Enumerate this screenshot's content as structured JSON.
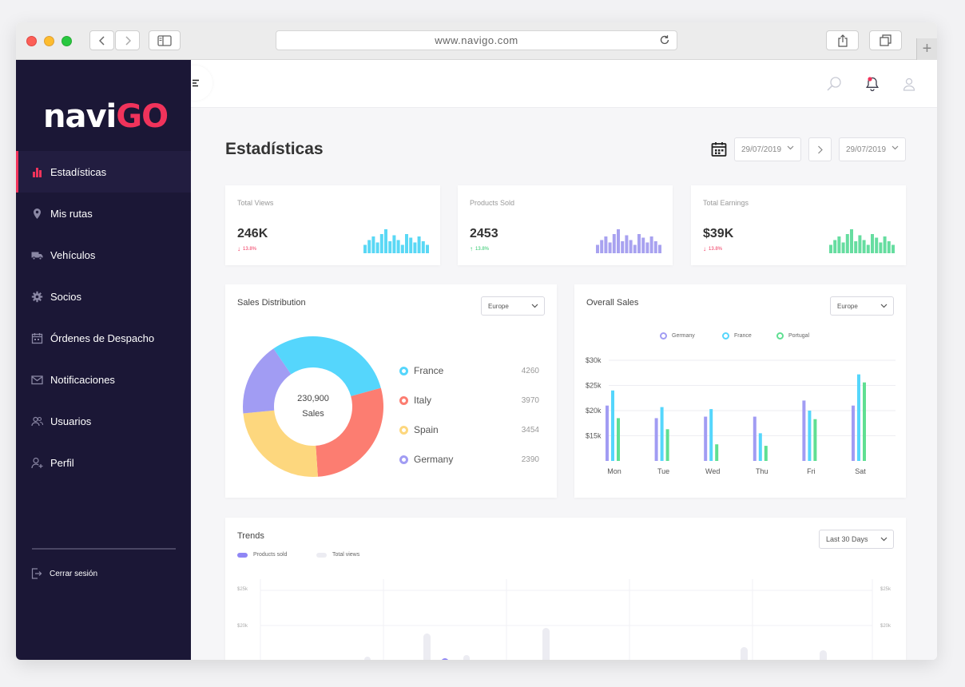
{
  "browser": {
    "url": "www.navigo.com"
  },
  "brand": {
    "name_part1": "navi",
    "name_part2": "GO"
  },
  "sidebar": {
    "items": [
      {
        "label": "Estadísticas",
        "icon": "bar-chart-icon",
        "active": true
      },
      {
        "label": "Mis rutas",
        "icon": "location-pin-icon"
      },
      {
        "label": "Vehículos",
        "icon": "truck-icon"
      },
      {
        "label": "Socios",
        "icon": "gear-icon"
      },
      {
        "label": "Órdenes de Despacho",
        "icon": "calendar-icon"
      },
      {
        "label": "Notificaciones",
        "icon": "envelope-icon"
      },
      {
        "label": "Usuarios",
        "icon": "users-icon"
      },
      {
        "label": "Perfil",
        "icon": "user-add-icon"
      }
    ],
    "logout_label": "Cerrar sesión"
  },
  "header": {
    "title": "Estadísticas",
    "date_from": "29/07/2019",
    "date_to": "29/07/2019"
  },
  "stats": [
    {
      "label": "Total Views",
      "value": "246K",
      "change": "13.8%",
      "direction": "down",
      "color": "#5ad8f5",
      "bars": [
        0.35,
        0.55,
        0.7,
        0.45,
        0.8,
        1.0,
        0.5,
        0.75,
        0.55,
        0.35,
        0.8,
        0.65,
        0.45,
        0.7,
        0.5,
        0.35
      ]
    },
    {
      "label": "Products Sold",
      "value": "2453",
      "change": "13.8%",
      "direction": "up",
      "color": "#a8a2f0",
      "bars": [
        0.35,
        0.55,
        0.7,
        0.45,
        0.8,
        1.0,
        0.5,
        0.75,
        0.55,
        0.35,
        0.8,
        0.65,
        0.45,
        0.7,
        0.5,
        0.35
      ]
    },
    {
      "label": "Total Earnings",
      "value": "$39K",
      "change": "13.8%",
      "direction": "down",
      "color": "#66dda0",
      "bars": [
        0.35,
        0.55,
        0.7,
        0.45,
        0.8,
        1.0,
        0.5,
        0.75,
        0.55,
        0.35,
        0.8,
        0.65,
        0.45,
        0.7,
        0.5,
        0.35
      ]
    }
  ],
  "sales_distribution": {
    "title": "Sales Distribution",
    "region": "Europe",
    "total": "230,900",
    "total_label": "Sales",
    "items": [
      {
        "name": "France",
        "value": 4260,
        "color": "#55d6fc"
      },
      {
        "name": "Italy",
        "value": 3970,
        "color": "#fc7d71"
      },
      {
        "name": "Spain",
        "value": 3454,
        "color": "#fdd77e"
      },
      {
        "name": "Germany",
        "value": 2390,
        "color": "#a19cf3"
      }
    ]
  },
  "overall_sales": {
    "title": "Overall Sales",
    "region": "Europe",
    "chart_data": {
      "type": "bar",
      "categories": [
        "Mon",
        "Tue",
        "Wed",
        "Thu",
        "Fri",
        "Sat"
      ],
      "ylabel": "",
      "yticks": [
        "$30k",
        "$25k",
        "$20k",
        "$15k"
      ],
      "ylim": [
        10000,
        30000
      ],
      "series": [
        {
          "name": "Germany",
          "color": "#a19cf3",
          "values": [
            21000,
            18500,
            18800,
            18800,
            22000,
            21000
          ]
        },
        {
          "name": "France",
          "color": "#55d6fc",
          "values": [
            24000,
            20700,
            20300,
            15500,
            20000,
            27200
          ]
        },
        {
          "name": "Portugal",
          "color": "#5fdf92",
          "values": [
            18500,
            16300,
            13300,
            13000,
            18300,
            25600
          ]
        }
      ]
    }
  },
  "trends": {
    "title": "Trends",
    "range": "Last 30 Days",
    "legend": [
      {
        "name": "Products sold",
        "color": "#8f86f5"
      },
      {
        "name": "Total views",
        "color": "#ececf2"
      }
    ],
    "y_ticks": [
      "$25k",
      "$20k"
    ]
  }
}
